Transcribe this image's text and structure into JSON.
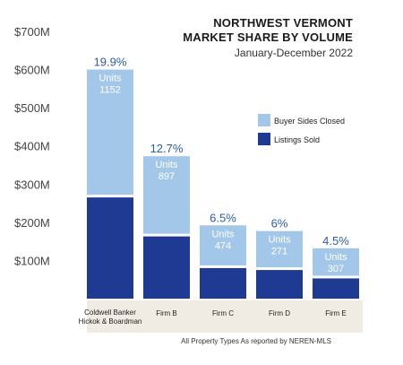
{
  "chart_data": {
    "type": "bar",
    "stacked": true,
    "title_lines": [
      "NORTHWEST VERMONT",
      "MARKET SHARE BY VOLUME"
    ],
    "subtitle": "January-December 2022",
    "categories": [
      "Coldwell Banker Hickok & Boardman",
      "Firm B",
      "Firm C",
      "Firm D",
      "Firm E"
    ],
    "series": [
      {
        "name": "Listings Sold",
        "color": "#1f3a93",
        "values": [
          265,
          163,
          80,
          75,
          53
        ]
      },
      {
        "name": "Buyer Sides Closed",
        "color": "#a3c7e8",
        "values": [
          335,
          210,
          112,
          102,
          79
        ]
      }
    ],
    "top_labels": [
      "19.9%",
      "12.7%",
      "6.5%",
      "6%",
      "4.5%"
    ],
    "units_label": "Units",
    "units_values": [
      "1152",
      "897",
      "474",
      "271",
      "307"
    ],
    "yticks": [
      "$100M",
      "$200M",
      "$300M",
      "$400M",
      "$500M",
      "$600M",
      "$700M"
    ],
    "ytick_values": [
      100,
      200,
      300,
      400,
      500,
      600,
      700
    ],
    "ylim": [
      0,
      700
    ],
    "legend_position": "right",
    "xlabel": "",
    "ylabel": ""
  },
  "footnote": "All Property Types As reported by NEREN-MLS",
  "colors": {
    "accent": "#1f3a93",
    "light": "#a3c7e8",
    "label_blue": "#2a5caa",
    "axis_band": "#f1ece3"
  }
}
